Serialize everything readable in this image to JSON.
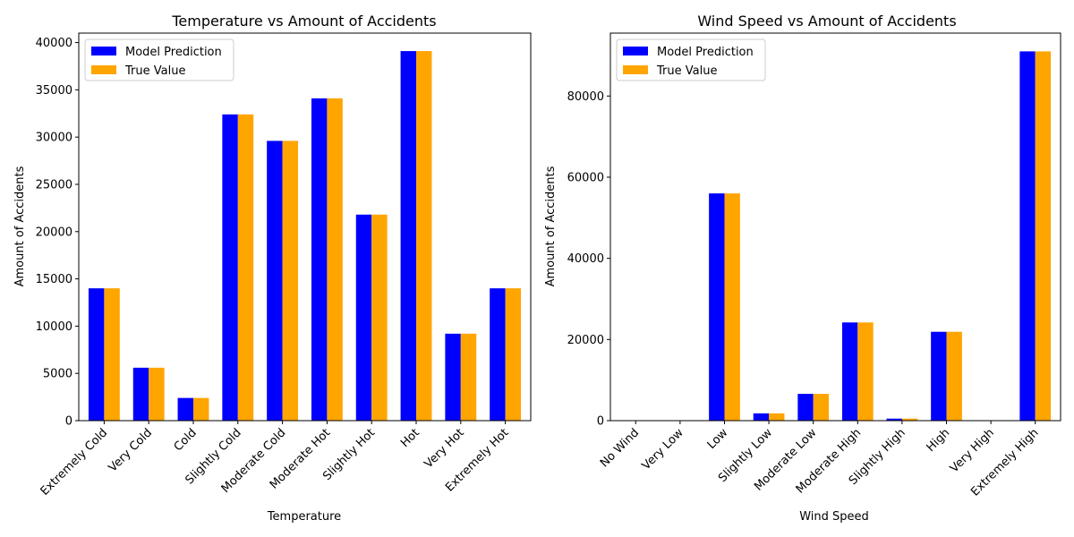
{
  "chart_data": [
    {
      "type": "bar",
      "title": "Temperature vs Amount of Accidents",
      "xlabel": "Temperature",
      "ylabel": "Amount of Accidents",
      "categories": [
        "Extremely Cold",
        "Very Cold",
        "Cold",
        "Slightly Cold",
        "Moderate Cold",
        "Moderate Hot",
        "Slightly Hot",
        "Hot",
        "Very Hot",
        "Extremely Hot"
      ],
      "series": [
        {
          "name": "Model Prediction",
          "color": "#0000ff",
          "values": [
            14000,
            5600,
            2400,
            32400,
            29600,
            34100,
            21800,
            39100,
            9200,
            14000
          ]
        },
        {
          "name": "True Value",
          "color": "#ffa500",
          "values": [
            14000,
            5600,
            2400,
            32400,
            29600,
            34100,
            21800,
            39100,
            9200,
            14000
          ]
        }
      ],
      "ylim": [
        0,
        41000
      ],
      "yticks": [
        0,
        5000,
        10000,
        15000,
        20000,
        25000,
        30000,
        35000,
        40000
      ],
      "legend": "upper-left",
      "grid": false
    },
    {
      "type": "bar",
      "title": "Wind Speed vs Amount of Accidents",
      "xlabel": "Wind Speed",
      "ylabel": "Amount of Accidents",
      "categories": [
        "No Wind",
        "Very Low",
        "Low",
        "Slightly Low",
        "Moderate Low",
        "Moderate High",
        "Slightly High",
        "High",
        "Very High",
        "Extremely High"
      ],
      "series": [
        {
          "name": "Model Prediction",
          "color": "#0000ff",
          "values": [
            0,
            0,
            56000,
            1800,
            6600,
            24200,
            500,
            21900,
            0,
            91000
          ]
        },
        {
          "name": "True Value",
          "color": "#ffa500",
          "values": [
            0,
            0,
            56000,
            1800,
            6600,
            24200,
            500,
            21900,
            0,
            91000
          ]
        }
      ],
      "ylim": [
        0,
        95500
      ],
      "yticks": [
        0,
        20000,
        40000,
        60000,
        80000
      ],
      "legend": "upper-left",
      "grid": false
    }
  ]
}
